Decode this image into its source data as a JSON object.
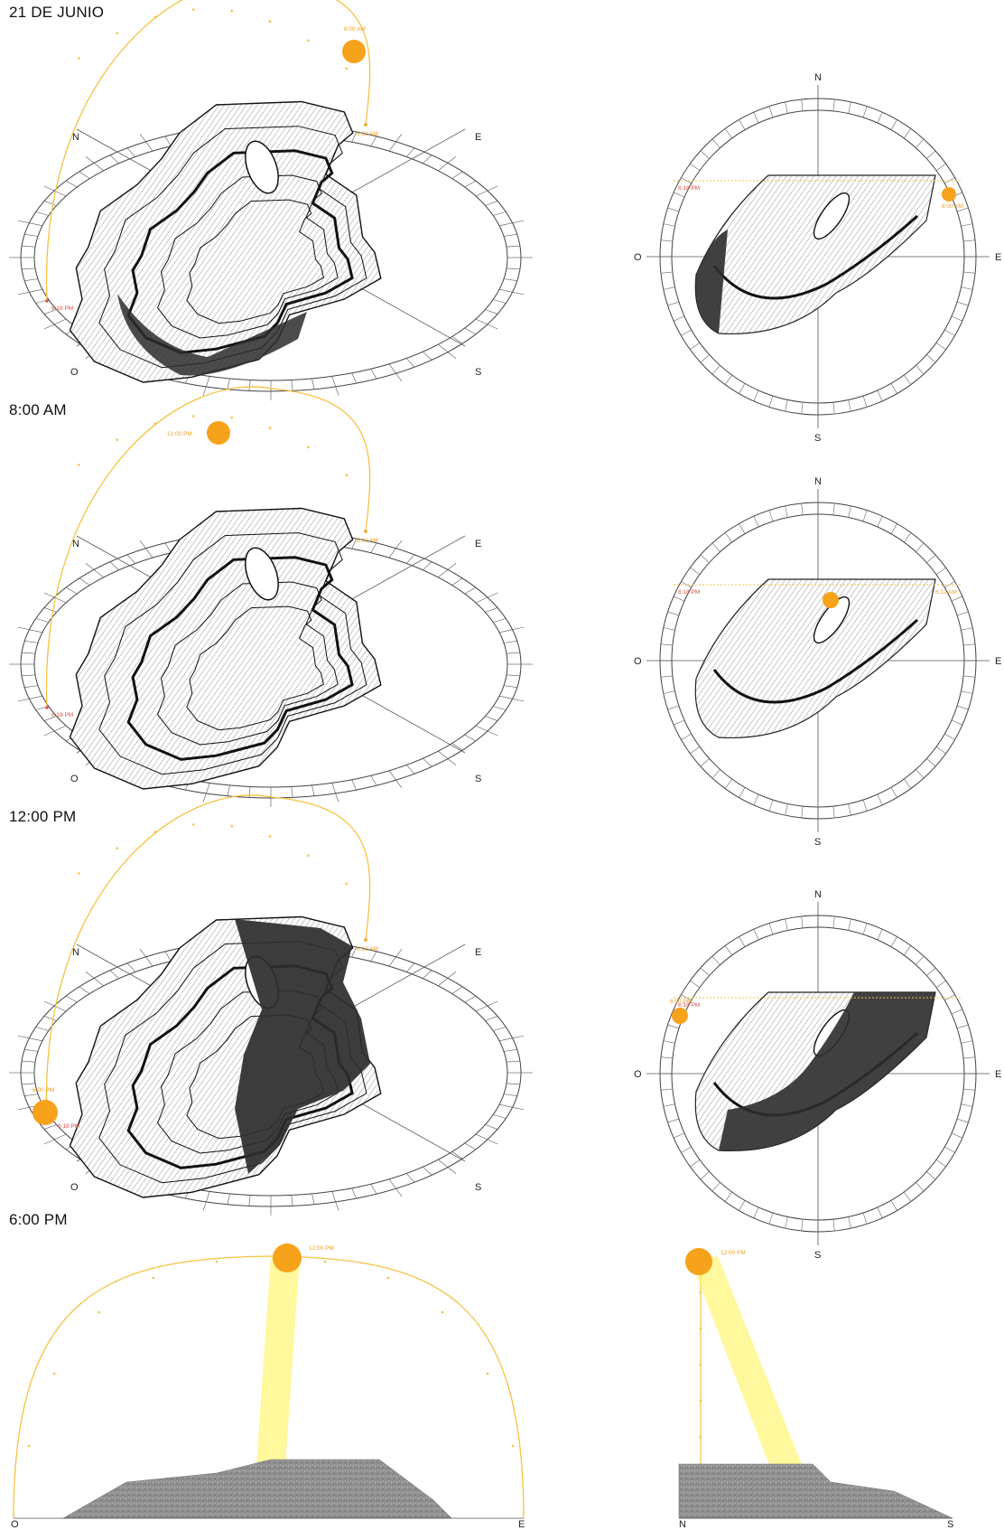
{
  "headings": {
    "date": "21 DE JUNIO",
    "p1": "8:00 AM",
    "p2": "12:00 PM",
    "p3": "6:00 PM"
  },
  "cardinals": {
    "north": "N",
    "east": "E",
    "south": "S",
    "west": "O"
  },
  "colors": {
    "sun": "#f7a21b",
    "sun_path": "#f5c242",
    "sunrise_label": "#f0a020",
    "sunset_label": "#e0504a",
    "beam": "#fff24a",
    "terrain_shadow": "#2c2c2c",
    "ground": "#8d8d8d"
  },
  "panels": [
    {
      "name": "8:00 AM",
      "perspective": {
        "sun_label": "8:00 AM",
        "sunrise_label": "6:12 AM",
        "sunset_label": "6:18 PM"
      },
      "plan": {
        "sun_label": "8:00 AM",
        "west_label": "6:18 PM",
        "east_label": ""
      }
    },
    {
      "name": "12:00 PM",
      "perspective": {
        "sun_label": "12:00 PM",
        "sunrise_label": "6:12 AM",
        "sunset_label": "6:18 PM"
      },
      "plan": {
        "sun_label": "",
        "west_label": "6:18 PM",
        "east_label": "6:12 AM"
      }
    },
    {
      "name": "6:00 PM",
      "perspective": {
        "sun_label": "6:00 PM",
        "sunrise_label": "6:12 AM",
        "sunset_label": "6:18 PM"
      },
      "plan": {
        "sun_label": "6:00 PM",
        "west_label": "6:18 PM",
        "east_label": ""
      }
    }
  ],
  "sections": {
    "east_west": {
      "sun_label": "12:00 PM",
      "left": "O",
      "right": "E"
    },
    "north_south": {
      "sun_label": "12:00 PM",
      "left": "N",
      "right": "S"
    }
  }
}
